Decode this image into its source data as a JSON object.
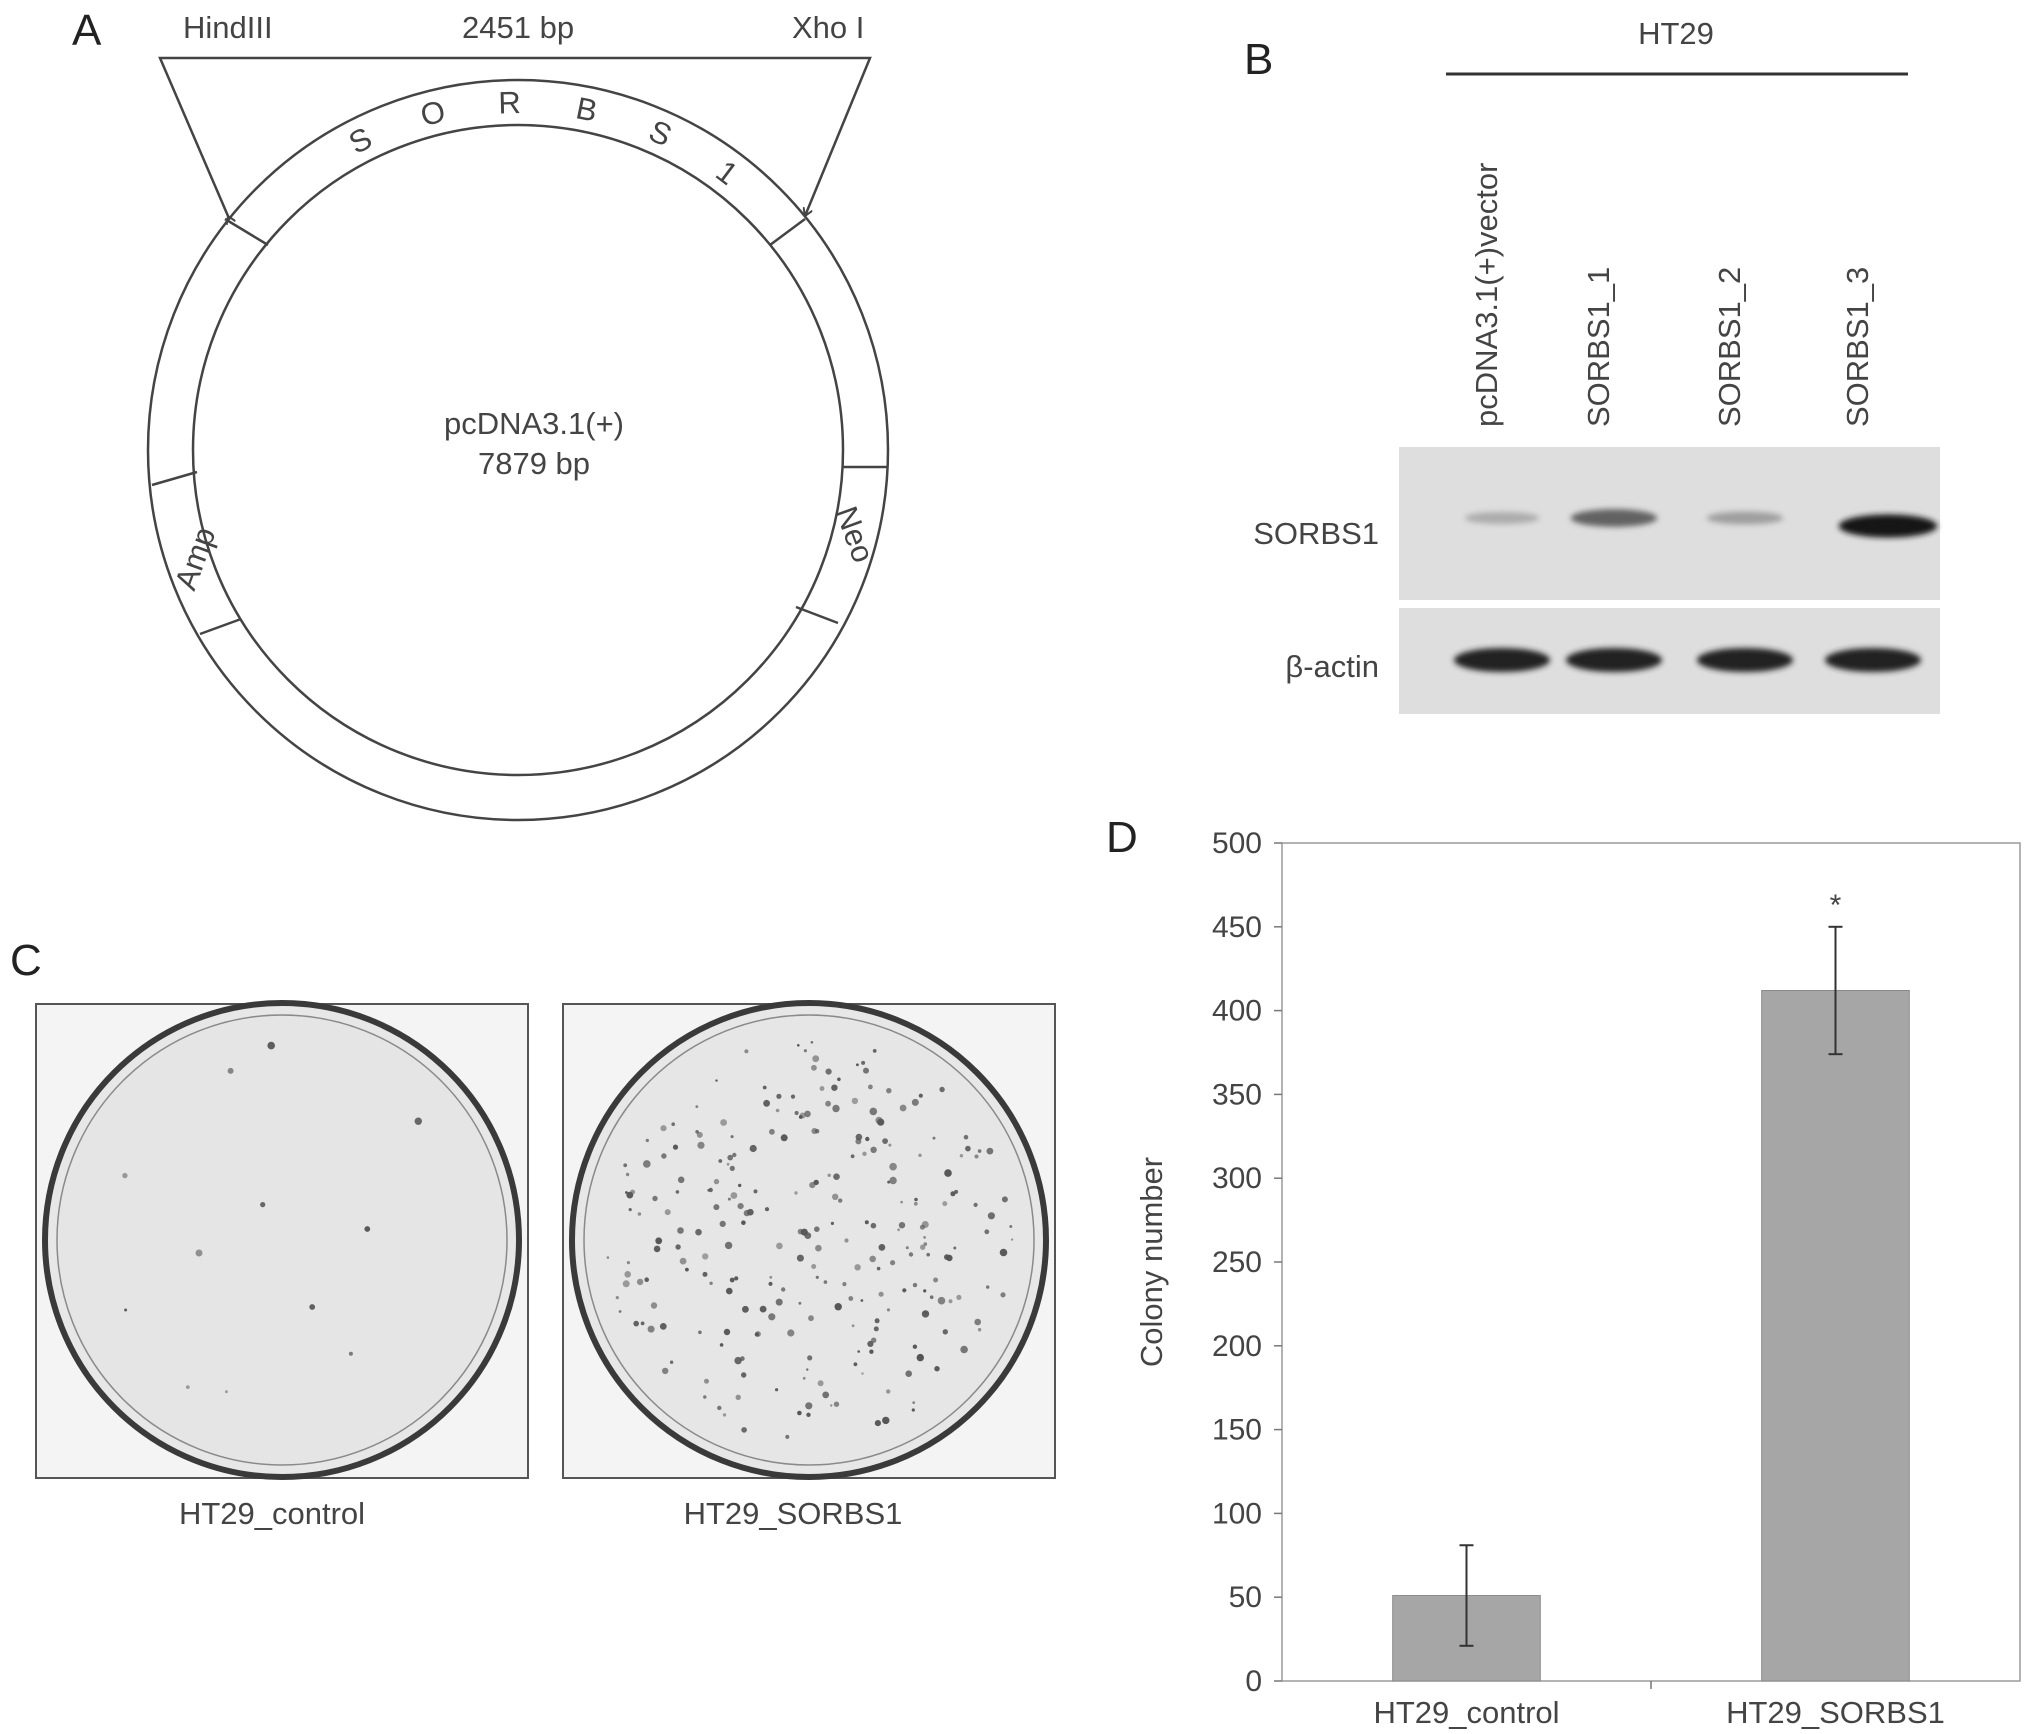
{
  "panels": {
    "A": {
      "letter": "A",
      "left_site": "HindIII",
      "right_site": "Xho I",
      "insert_size": "2451 bp",
      "insert_letters": [
        "S",
        "O",
        "R",
        "B",
        "S",
        "1"
      ],
      "plasmid_name": "pcDNA3.1(+)",
      "plasmid_size": "7879 bp",
      "left_marker": "Amp",
      "right_marker": "Neo"
    },
    "B": {
      "letter": "B",
      "cell_line": "HT29",
      "lanes": [
        "pcDNA3.1(+)vector",
        "SORBS1_1",
        "SORBS1_2",
        "SORBS1_3"
      ],
      "rows": [
        {
          "label": "SORBS1",
          "band_intensity": [
            0.15,
            0.55,
            0.22,
            0.95
          ]
        },
        {
          "label": "β-actin",
          "band_intensity": [
            0.9,
            0.9,
            0.9,
            0.9
          ]
        }
      ]
    },
    "C": {
      "letter": "C",
      "plates": [
        {
          "label": "HT29_control",
          "colonies": "few"
        },
        {
          "label": "HT29_SORBS1",
          "colonies": "many"
        }
      ]
    },
    "D": {
      "letter": "D"
    }
  },
  "chart_data": {
    "type": "bar",
    "categories": [
      "HT29_control",
      "HT29_SORBS1"
    ],
    "values": [
      51,
      412
    ],
    "error": [
      30,
      38
    ],
    "significance": [
      "",
      "*"
    ],
    "ylabel": "Colony number",
    "xlabel": "",
    "ylim": [
      0,
      500
    ],
    "yticks": [
      0,
      50,
      100,
      150,
      200,
      250,
      300,
      350,
      400,
      450,
      500
    ],
    "bar_color": "#a6a6a6"
  }
}
